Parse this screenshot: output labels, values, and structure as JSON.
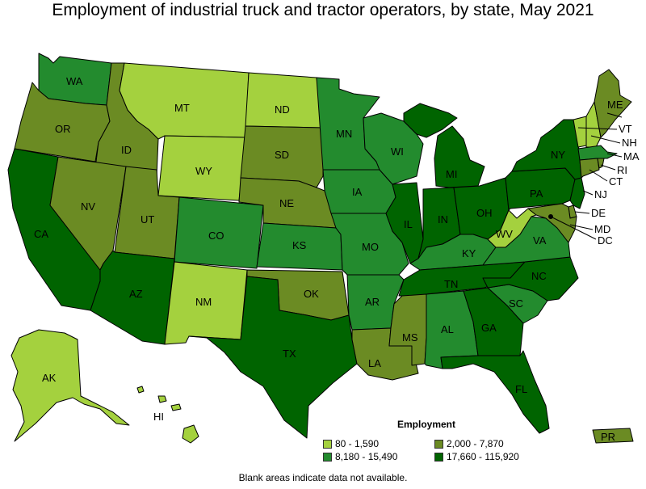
{
  "title": "Employment of industrial truck and tractor operators, by state, May 2021",
  "footnote": "Blank areas indicate data not available.",
  "legend": {
    "title": "Employment",
    "items": [
      {
        "label": "80 - 1,590",
        "color": "#a4d13e"
      },
      {
        "label": "2,000 - 7,870",
        "color": "#6b8b23"
      },
      {
        "label": "8,180 - 15,490",
        "color": "#238b2e"
      },
      {
        "label": "17,660 - 115,920",
        "color": "#006400"
      }
    ]
  },
  "states": {
    "WA": {
      "label": "WA",
      "class": 2
    },
    "OR": {
      "label": "OR",
      "class": 1
    },
    "CA": {
      "label": "CA",
      "class": 3
    },
    "ID": {
      "label": "ID",
      "class": 1
    },
    "NV": {
      "label": "NV",
      "class": 1
    },
    "MT": {
      "label": "MT",
      "class": 0
    },
    "WY": {
      "label": "WY",
      "class": 0
    },
    "UT": {
      "label": "UT",
      "class": 1
    },
    "AZ": {
      "label": "AZ",
      "class": 3
    },
    "CO": {
      "label": "CO",
      "class": 2
    },
    "NM": {
      "label": "NM",
      "class": 0
    },
    "ND": {
      "label": "ND",
      "class": 0
    },
    "SD": {
      "label": "SD",
      "class": 1
    },
    "NE": {
      "label": "NE",
      "class": 1
    },
    "KS": {
      "label": "KS",
      "class": 2
    },
    "OK": {
      "label": "OK",
      "class": 1
    },
    "TX": {
      "label": "TX",
      "class": 3
    },
    "MN": {
      "label": "MN",
      "class": 2
    },
    "IA": {
      "label": "IA",
      "class": 2
    },
    "MO": {
      "label": "MO",
      "class": 2
    },
    "AR": {
      "label": "AR",
      "class": 2
    },
    "LA": {
      "label": "LA",
      "class": 1
    },
    "WI": {
      "label": "WI",
      "class": 2
    },
    "IL": {
      "label": "IL",
      "class": 3
    },
    "MI": {
      "label": "MI",
      "class": 3
    },
    "IN": {
      "label": "IN",
      "class": 3
    },
    "OH": {
      "label": "OH",
      "class": 3
    },
    "KY": {
      "label": "KY",
      "class": 2
    },
    "TN": {
      "label": "TN",
      "class": 3
    },
    "MS": {
      "label": "MS",
      "class": 1
    },
    "AL": {
      "label": "AL",
      "class": 2
    },
    "GA": {
      "label": "GA",
      "class": 3
    },
    "FL": {
      "label": "FL",
      "class": 3
    },
    "SC": {
      "label": "SC",
      "class": 2
    },
    "NC": {
      "label": "NC",
      "class": 3
    },
    "VA": {
      "label": "VA",
      "class": 2
    },
    "WV": {
      "label": "WV",
      "class": 0
    },
    "PA": {
      "label": "PA",
      "class": 3
    },
    "NY": {
      "label": "NY",
      "class": 3
    },
    "NJ": {
      "label": "NJ",
      "class": 3
    },
    "DE": {
      "label": "DE",
      "class": 1
    },
    "MD": {
      "label": "MD",
      "class": 1
    },
    "DC": {
      "label": "DC",
      "class": 0
    },
    "CT": {
      "label": "CT",
      "class": 1
    },
    "RI": {
      "label": "RI",
      "class": 1
    },
    "MA": {
      "label": "MA",
      "class": 2
    },
    "VT": {
      "label": "VT",
      "class": 0
    },
    "NH": {
      "label": "NH",
      "class": 0
    },
    "ME": {
      "label": "ME",
      "class": 1
    },
    "AK": {
      "label": "AK",
      "class": 0
    },
    "HI": {
      "label": "HI",
      "class": 0
    },
    "PR": {
      "label": "PR",
      "class": 1
    }
  }
}
